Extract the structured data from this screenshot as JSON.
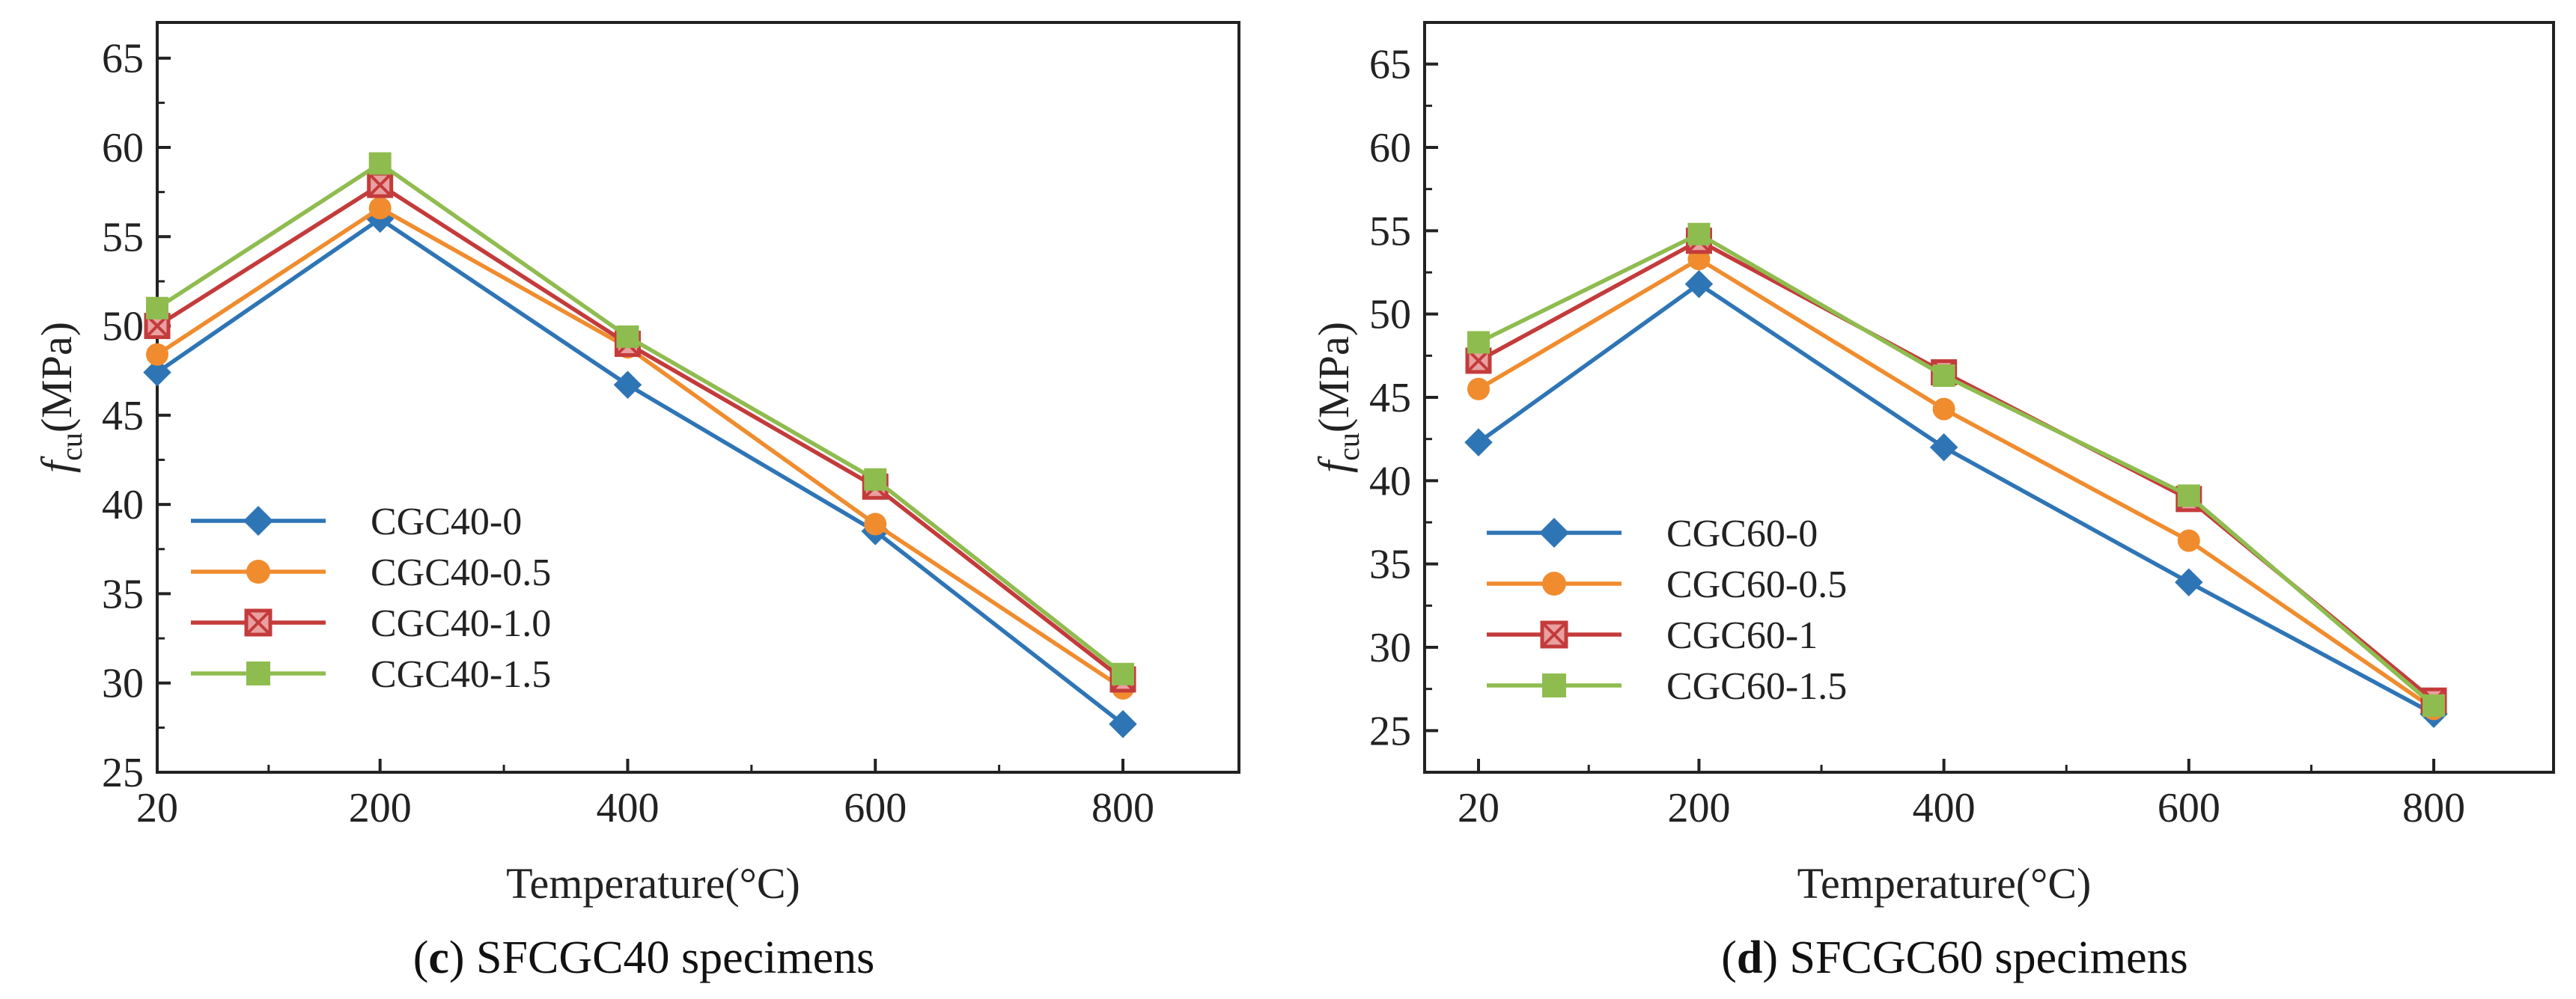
{
  "chart_data": [
    {
      "type": "line",
      "panel_letter": "c",
      "caption": "SFCGC40 specimens",
      "xlabel": "Temperature(°C)",
      "ylabel_main": "f",
      "ylabel_sub": "cu",
      "ylabel_unit": "(MPa)",
      "x": [
        20,
        200,
        400,
        600,
        800
      ],
      "x_tick_labels": [
        "20",
        "200",
        "400",
        "600",
        "800"
      ],
      "ylim": [
        25,
        67
      ],
      "yticks": [
        25,
        30,
        35,
        40,
        45,
        50,
        55,
        60,
        65
      ],
      "legend_position": "lower-left",
      "series": [
        {
          "name": "CGC40-0",
          "marker": "diamond",
          "color": "#2e75b6",
          "values": [
            47.4,
            56.0,
            46.7,
            38.5,
            27.7
          ]
        },
        {
          "name": "CGC40-0.5",
          "marker": "circle",
          "color": "#f08c2e",
          "values": [
            48.4,
            56.6,
            48.8,
            38.9,
            29.7
          ]
        },
        {
          "name": "CGC40-1.0",
          "marker": "square-x",
          "color": "#c43b3b",
          "values": [
            50.0,
            57.9,
            49.0,
            41.0,
            30.2
          ]
        },
        {
          "name": "CGC40-1.5",
          "marker": "square",
          "color": "#8fbc4f",
          "values": [
            51.0,
            59.1,
            49.4,
            41.4,
            30.5
          ]
        }
      ]
    },
    {
      "type": "line",
      "panel_letter": "d",
      "caption": "SFCGC60 specimens",
      "xlabel": "Temperature(°C)",
      "ylabel_main": "f",
      "ylabel_sub": "cu",
      "ylabel_unit": "(MPa)",
      "x": [
        20,
        200,
        400,
        600,
        800
      ],
      "x_tick_labels": [
        "20",
        "200",
        "400",
        "600",
        "800"
      ],
      "ylim": [
        22.5,
        67.5
      ],
      "yticks": [
        25,
        30,
        35,
        40,
        45,
        50,
        55,
        60,
        65
      ],
      "legend_position": "lower-left",
      "series": [
        {
          "name": "CGC60-0",
          "marker": "diamond",
          "color": "#2e75b6",
          "values": [
            42.3,
            51.8,
            42.0,
            33.9,
            26.0
          ]
        },
        {
          "name": "CGC60-0.5",
          "marker": "circle",
          "color": "#f08c2e",
          "values": [
            45.5,
            53.3,
            44.3,
            36.4,
            26.3
          ]
        },
        {
          "name": "CGC60-1",
          "marker": "square-x",
          "color": "#c43b3b",
          "values": [
            47.2,
            54.4,
            46.5,
            38.9,
            26.8
          ]
        },
        {
          "name": "CGC60-1.5",
          "marker": "square",
          "color": "#8fbc4f",
          "values": [
            48.3,
            54.8,
            46.3,
            39.1,
            26.5
          ]
        }
      ]
    }
  ]
}
